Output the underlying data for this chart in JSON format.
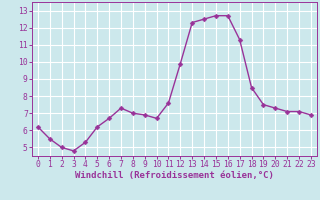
{
  "x": [
    0,
    1,
    2,
    3,
    4,
    5,
    6,
    7,
    8,
    9,
    10,
    11,
    12,
    13,
    14,
    15,
    16,
    17,
    18,
    19,
    20,
    21,
    22,
    23
  ],
  "y": [
    6.2,
    5.5,
    5.0,
    4.8,
    5.3,
    6.2,
    6.7,
    7.3,
    7.0,
    6.9,
    6.7,
    7.6,
    9.9,
    12.3,
    12.5,
    12.7,
    12.7,
    11.3,
    8.5,
    7.5,
    7.3,
    7.1,
    7.1,
    6.9
  ],
  "line_color": "#993399",
  "marker_color": "#993399",
  "bg_color": "#cce8ec",
  "grid_color": "#ffffff",
  "xlabel": "Windchill (Refroidissement éolien,°C)",
  "xlabel_color": "#993399",
  "tick_color": "#993399",
  "ylim": [
    4.5,
    13.5
  ],
  "xlim": [
    -0.5,
    23.5
  ],
  "yticks": [
    5,
    6,
    7,
    8,
    9,
    10,
    11,
    12,
    13
  ],
  "xticks": [
    0,
    1,
    2,
    3,
    4,
    5,
    6,
    7,
    8,
    9,
    10,
    11,
    12,
    13,
    14,
    15,
    16,
    17,
    18,
    19,
    20,
    21,
    22,
    23
  ],
  "xtick_labels": [
    "0",
    "1",
    "2",
    "3",
    "4",
    "5",
    "6",
    "7",
    "8",
    "9",
    "10",
    "11",
    "12",
    "13",
    "14",
    "15",
    "16",
    "17",
    "18",
    "19",
    "20",
    "21",
    "22",
    "23"
  ],
  "axis_fontsize": 6.5,
  "tick_fontsize": 5.8,
  "line_width": 1.0,
  "marker_size": 2.5
}
